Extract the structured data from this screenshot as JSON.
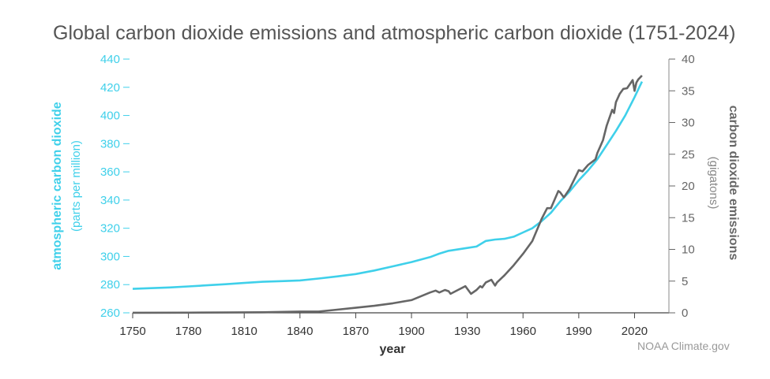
{
  "chart_data": {
    "type": "line",
    "title": "Global carbon dioxide emissions and atmospheric carbon dioxide (1751-2024)",
    "xlabel": "year",
    "credit": "NOAA Climate.gov",
    "xlim": [
      1750,
      2030
    ],
    "x_ticks": [
      "1750",
      "1780",
      "1810",
      "1840",
      "1870",
      "1900",
      "1930",
      "1960",
      "1990",
      "2020"
    ],
    "left_axis": {
      "label": "atmospheric carbon dioxide",
      "sublabel": "(parts per million)",
      "ylim": [
        260,
        440
      ],
      "ticks": [
        "260",
        "280",
        "300",
        "320",
        "340",
        "360",
        "380",
        "400",
        "420",
        "440"
      ],
      "color": "#3fd0ea"
    },
    "right_axis": {
      "label": "carbon dioxide emissions",
      "sublabel": "(gigatons)",
      "ylim": [
        0,
        40
      ],
      "ticks": [
        "0",
        "5",
        "10",
        "15",
        "20",
        "25",
        "30",
        "35",
        "40"
      ],
      "color": "#666666"
    },
    "series": [
      {
        "axis": "left",
        "color": "#3fd0ea",
        "points": [
          [
            1750,
            277
          ],
          [
            1760,
            277.5
          ],
          [
            1770,
            278
          ],
          [
            1780,
            278.7
          ],
          [
            1790,
            279.5
          ],
          [
            1800,
            280.3
          ],
          [
            1810,
            281.2
          ],
          [
            1820,
            282
          ],
          [
            1830,
            282.5
          ],
          [
            1840,
            283
          ],
          [
            1850,
            284.3
          ],
          [
            1860,
            285.8
          ],
          [
            1870,
            287.5
          ],
          [
            1880,
            290
          ],
          [
            1890,
            293
          ],
          [
            1900,
            296
          ],
          [
            1910,
            299.5
          ],
          [
            1915,
            302
          ],
          [
            1920,
            304
          ],
          [
            1930,
            306
          ],
          [
            1935,
            307
          ],
          [
            1940,
            311
          ],
          [
            1945,
            312
          ],
          [
            1950,
            312.5
          ],
          [
            1955,
            314
          ],
          [
            1960,
            317
          ],
          [
            1965,
            320
          ],
          [
            1970,
            325
          ],
          [
            1975,
            331
          ],
          [
            1980,
            339
          ],
          [
            1985,
            346
          ],
          [
            1990,
            354
          ],
          [
            1995,
            361
          ],
          [
            2000,
            369
          ],
          [
            2005,
            379
          ],
          [
            2010,
            389
          ],
          [
            2015,
            400
          ],
          [
            2020,
            413
          ],
          [
            2024,
            424
          ]
        ]
      },
      {
        "axis": "right",
        "color": "#666666",
        "points": [
          [
            1750,
            0.01
          ],
          [
            1780,
            0.03
          ],
          [
            1800,
            0.05
          ],
          [
            1820,
            0.09
          ],
          [
            1840,
            0.2
          ],
          [
            1850,
            0.2
          ],
          [
            1860,
            0.5
          ],
          [
            1870,
            0.8
          ],
          [
            1880,
            1.1
          ],
          [
            1890,
            1.5
          ],
          [
            1900,
            2.0
          ],
          [
            1905,
            2.6
          ],
          [
            1910,
            3.2
          ],
          [
            1913,
            3.5
          ],
          [
            1915,
            3.2
          ],
          [
            1918,
            3.6
          ],
          [
            1920,
            3.4
          ],
          [
            1921,
            3.0
          ],
          [
            1925,
            3.6
          ],
          [
            1929,
            4.2
          ],
          [
            1930,
            3.8
          ],
          [
            1932,
            3.0
          ],
          [
            1935,
            3.6
          ],
          [
            1937,
            4.2
          ],
          [
            1938,
            4.0
          ],
          [
            1940,
            4.8
          ],
          [
            1943,
            5.2
          ],
          [
            1945,
            4.3
          ],
          [
            1946,
            4.8
          ],
          [
            1950,
            5.9
          ],
          [
            1955,
            7.5
          ],
          [
            1960,
            9.3
          ],
          [
            1965,
            11.3
          ],
          [
            1970,
            14.8
          ],
          [
            1973,
            16.5
          ],
          [
            1975,
            16.5
          ],
          [
            1979,
            19.2
          ],
          [
            1980,
            19.0
          ],
          [
            1982,
            18.2
          ],
          [
            1985,
            19.5
          ],
          [
            1990,
            22.5
          ],
          [
            1992,
            22.3
          ],
          [
            1995,
            23.3
          ],
          [
            1999,
            24.2
          ],
          [
            2000,
            25.2
          ],
          [
            2003,
            27.2
          ],
          [
            2005,
            29.5
          ],
          [
            2008,
            32.0
          ],
          [
            2009,
            31.5
          ],
          [
            2010,
            33.2
          ],
          [
            2012,
            34.5
          ],
          [
            2014,
            35.3
          ],
          [
            2016,
            35.4
          ],
          [
            2019,
            36.7
          ],
          [
            2020,
            35.0
          ],
          [
            2021,
            36.3
          ],
          [
            2022,
            36.8
          ],
          [
            2024,
            37.4
          ]
        ]
      }
    ]
  },
  "colors": {
    "left_series": "#3fd0ea",
    "right_series": "#666666",
    "title": "#555555"
  }
}
